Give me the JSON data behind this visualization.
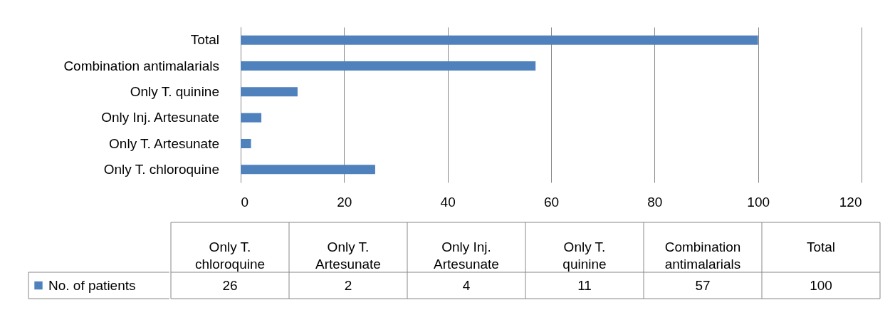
{
  "chart_data": [
    {
      "type": "bar",
      "orientation": "horizontal",
      "categories": [
        "Total",
        "Combination antimalarials",
        "Only T. quinine",
        "Only Inj. Artesunate",
        "Only T. Artesunate",
        "Only T. chloroquine"
      ],
      "series": [
        {
          "color": "#4f81bd",
          "values": [
            100,
            57,
            11,
            4,
            2,
            26
          ]
        }
      ],
      "xlim": [
        0,
        120
      ],
      "xticks": [
        0,
        20,
        40,
        60,
        80,
        100,
        120
      ],
      "grid": "x"
    },
    {
      "type": "other",
      "categories": [
        "Only T. chloroquine",
        "Only T. Artesunate",
        "Only Inj. Artesunate",
        "Only T. quinine",
        "Combination antimalarials",
        "Total"
      ],
      "series": [
        {
          "name": "No. of patients",
          "color": "#4f81bd",
          "values": [
            26,
            2,
            4,
            11,
            57,
            100
          ]
        }
      ],
      "legend": "left",
      "data_labels": true
    }
  ]
}
